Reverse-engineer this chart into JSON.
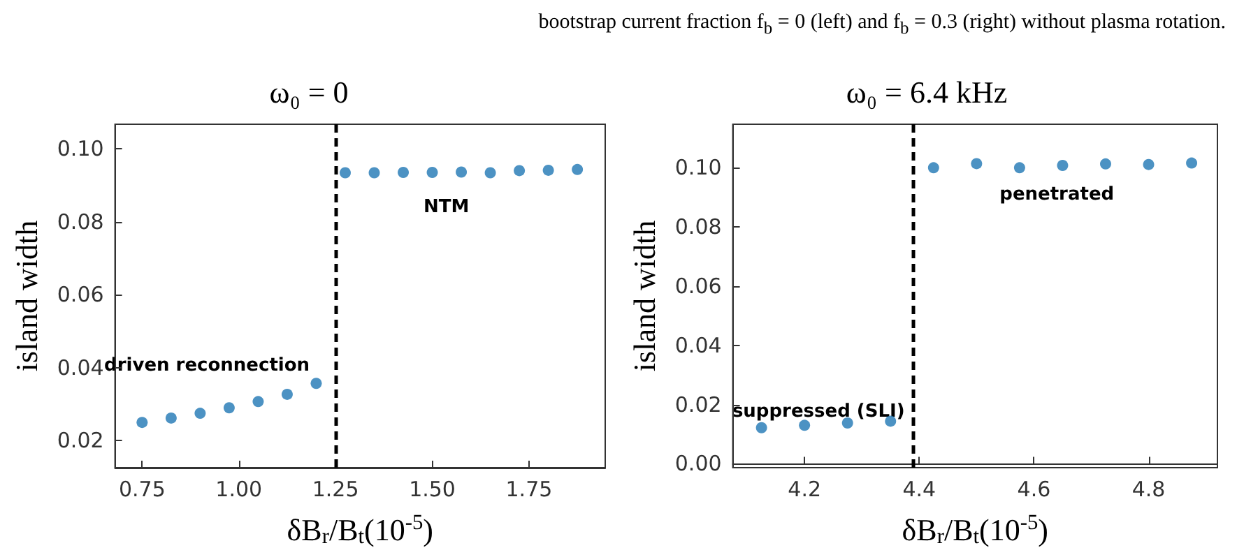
{
  "chart_data": [
    {
      "type": "scatter",
      "title": "ω₀ = 0",
      "xlabel": "δB$_{r}$/B$_{t}$(10$^{-5}$)",
      "ylabel": "island width",
      "x": [
        0.75,
        0.825,
        0.9,
        0.975,
        1.05,
        1.125,
        1.2,
        1.275,
        1.35,
        1.425,
        1.5,
        1.575,
        1.65,
        1.725,
        1.8,
        1.875
      ],
      "series": [
        {
          "color": "#1f77b4",
          "values": [
            0.025,
            0.0262,
            0.0275,
            0.029,
            0.0307,
            0.0327,
            0.0357,
            0.0934,
            0.0934,
            0.0935,
            0.0935,
            0.0936,
            0.0934,
            0.094,
            0.0941,
            0.0943
          ]
        }
      ],
      "xlim": [
        0.68,
        1.947
      ],
      "ylim": [
        0.0126,
        0.1067
      ],
      "xticks": [
        {
          "value": 0.75,
          "label": "0.75"
        },
        {
          "value": 1,
          "label": "1.00"
        },
        {
          "value": 1.25,
          "label": "1.25"
        },
        {
          "value": 1.5,
          "label": "1.50"
        },
        {
          "value": 1.75,
          "label": "1.75"
        }
      ],
      "yticks": [
        0.02,
        0.04,
        0.06,
        0.08,
        {
          "value": 0.1,
          "label": "0.10"
        }
      ],
      "marker": "circle",
      "ref_lines": [
        {
          "axis": "x",
          "value": 1.25,
          "color": "#000000",
          "line_style": "dashed"
        }
      ],
      "annotations": [
        "bootstrap current fraction f$_{b}$ = 0 (left) and f$_{b}$ = 0.3 (right) without plasma rotation.",
        "driven reconnection",
        "NTM"
      ]
    },
    {
      "type": "scatter",
      "title": "ω₀ = 6.4 kHz",
      "xlabel": "δB$_{r}$/B$_{t}$(10$^{-5}$)",
      "ylabel": "island width",
      "x": [
        4.125,
        4.2,
        4.275,
        4.35,
        4.425,
        4.5,
        4.575,
        4.65,
        4.725,
        4.8,
        4.875
      ],
      "series": [
        {
          "color": "#1f77b4",
          "values": [
            0.0122,
            0.013,
            0.0138,
            0.0144,
            0.1,
            0.1014,
            0.1,
            0.1008,
            0.1013,
            0.1011,
            0.1016
          ]
        }
      ],
      "xlim": [
        4.075,
        4.92
      ],
      "ylim": [
        -0.0013,
        0.1147
      ],
      "xticks": [
        4.2,
        4.4,
        4.6,
        4.8
      ],
      "yticks": [
        {
          "value": 0,
          "label": "0.00"
        },
        {
          "value": 0.02,
          "label": "0.02"
        },
        {
          "value": 0.04,
          "label": "0.04"
        },
        {
          "value": 0.06,
          "label": "0.06"
        },
        {
          "value": 0.08,
          "label": "0.08"
        },
        {
          "value": 0.1,
          "label": "0.10"
        }
      ],
      "marker": "circle",
      "ref_lines": [
        {
          "axis": "x",
          "value": 4.39,
          "color": "#000000",
          "line_style": "dashed"
        }
      ],
      "annotations": [
        "suppressed (SLI)",
        "penetrated"
      ]
    }
  ]
}
